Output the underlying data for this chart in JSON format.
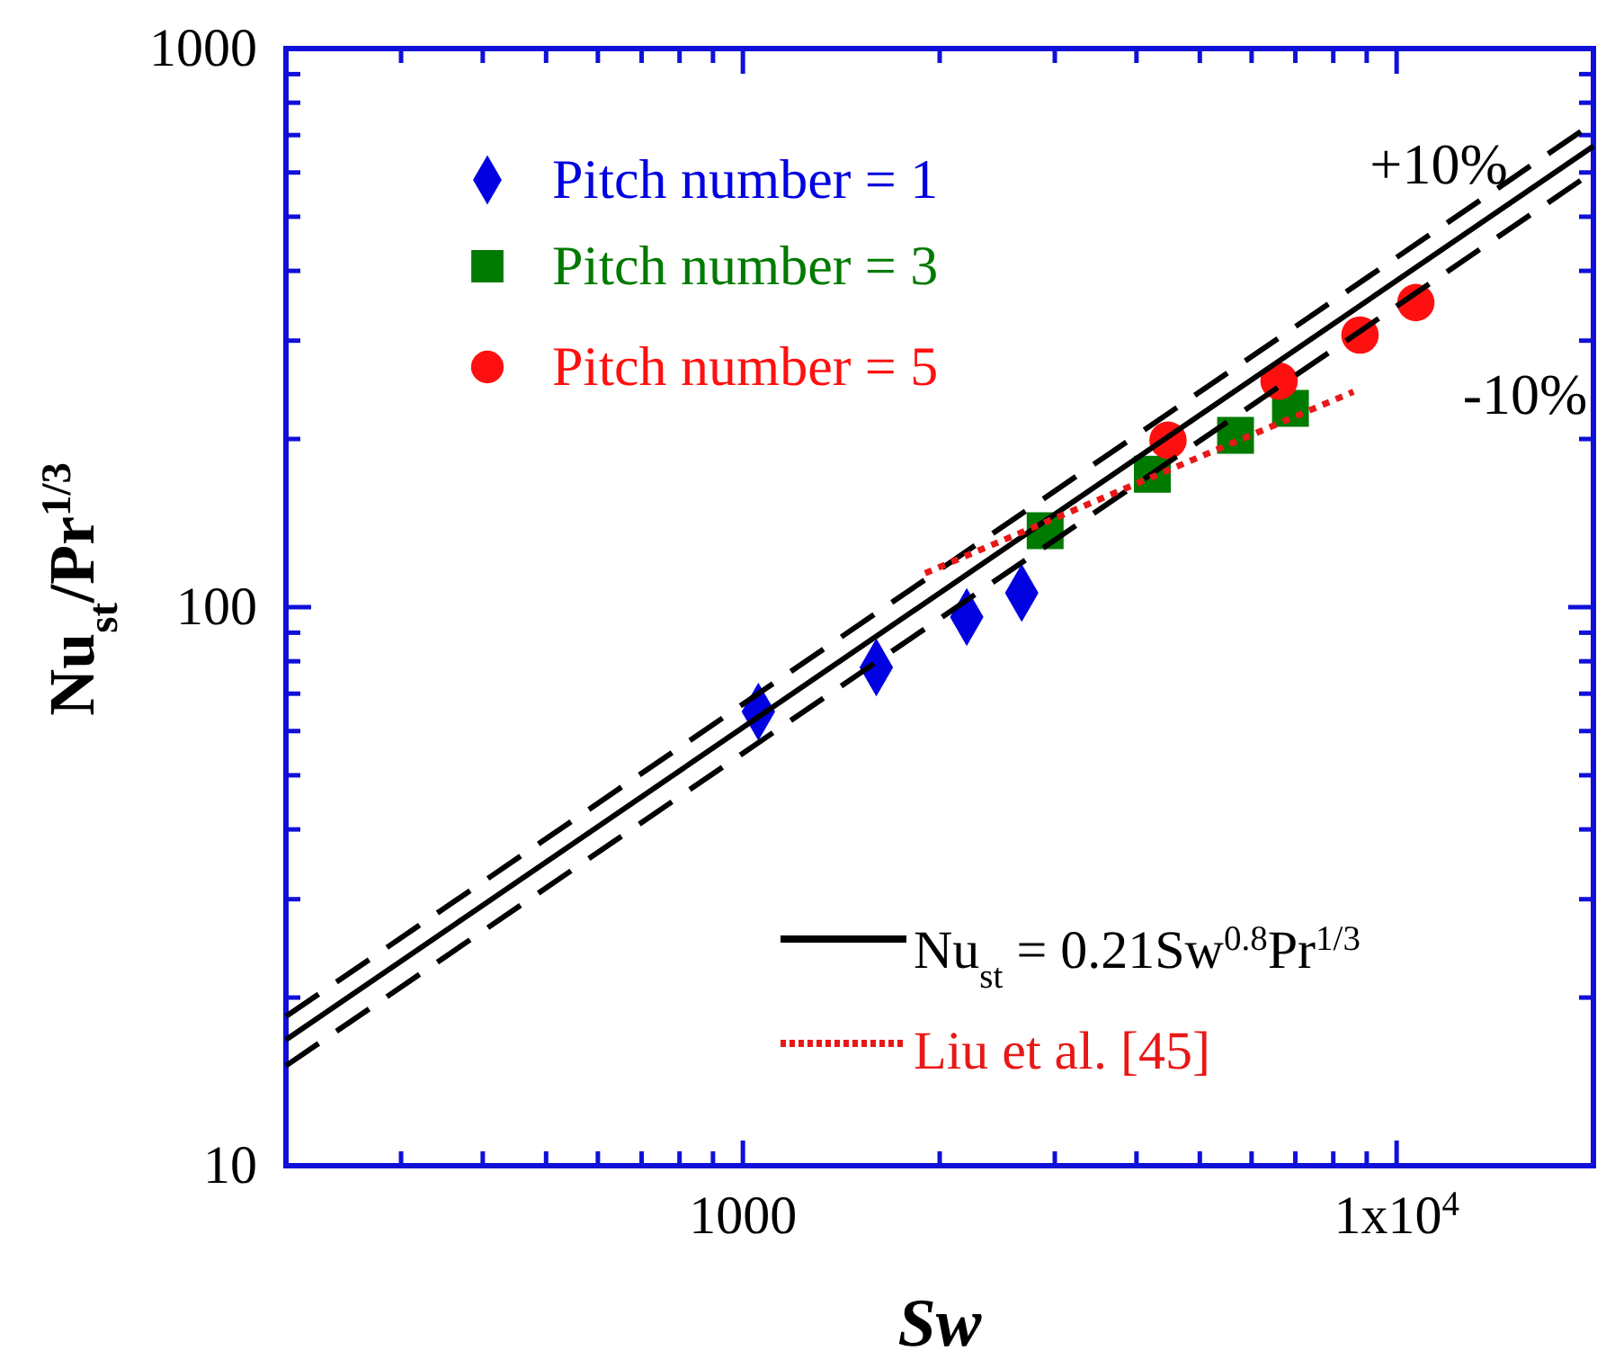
{
  "chart_data": {
    "type": "scatter",
    "xlabel": "Sw",
    "ylabel": "Nu$_{st}$/Pr$^{1/3}$",
    "log": "xy",
    "xlim": [
      200,
      20000
    ],
    "ylim": [
      10,
      1000
    ],
    "xticks": [
      {
        "value": 300,
        "label": null
      },
      {
        "value": 400,
        "label": null
      },
      {
        "value": 500,
        "label": null
      },
      {
        "value": 600,
        "label": null
      },
      {
        "value": 700,
        "label": null
      },
      {
        "value": 800,
        "label": null
      },
      {
        "value": 900,
        "label": null
      },
      1000,
      {
        "value": 2000,
        "label": null
      },
      {
        "value": 3000,
        "label": null
      },
      {
        "value": 4000,
        "label": null
      },
      {
        "value": 5000,
        "label": null
      },
      {
        "value": 6000,
        "label": null
      },
      {
        "value": 7000,
        "label": null
      },
      {
        "value": 8000,
        "label": null
      },
      {
        "value": 9000,
        "label": null
      },
      {
        "value": 10000,
        "label": "1x10$^{4}$"
      }
    ],
    "yticks": [
      10,
      {
        "value": 20,
        "label": null
      },
      {
        "value": 30,
        "label": null
      },
      {
        "value": 40,
        "label": null
      },
      {
        "value": 50,
        "label": null
      },
      {
        "value": 60,
        "label": null
      },
      {
        "value": 70,
        "label": null
      },
      {
        "value": 80,
        "label": null
      },
      {
        "value": 90,
        "label": null
      },
      100,
      {
        "value": 200,
        "label": null
      },
      {
        "value": 300,
        "label": null
      },
      {
        "value": 400,
        "label": null
      },
      {
        "value": 500,
        "label": null
      },
      {
        "value": 600,
        "label": null
      },
      {
        "value": 700,
        "label": null
      },
      {
        "value": 800,
        "label": null
      },
      {
        "value": 900,
        "label": null
      },
      1000
    ],
    "grid": false,
    "legend": "left",
    "series": [
      {
        "name": "Pitch number = 1",
        "marker": "diamond",
        "color": "#0000e0",
        "x": [
          1056,
          1600,
          2200,
          2670
        ],
        "values": [
          65,
          78,
          96,
          106
        ]
      },
      {
        "name": "Pitch number = 3",
        "marker": "square",
        "color": "#007a00",
        "x": [
          2900,
          4230,
          5670,
          6880
        ],
        "values": [
          137,
          173,
          203,
          227
        ]
      },
      {
        "name": "Pitch number = 5",
        "marker": "circle",
        "color": "#ff1010",
        "x": [
          4470,
          6610,
          8790,
          10700
        ],
        "values": [
          199,
          254,
          307,
          351
        ]
      },
      {
        "name": "Nu$_{st}$ = 0.21Sw$^{0.8}$Pr$^{1/3}$",
        "type": "line",
        "marker": "none",
        "line_style": "solid",
        "color": "#000000",
        "x": [
          200,
          20000
        ],
        "values": [
          16.8,
          669
        ]
      },
      {
        "type": "line",
        "marker": "none",
        "line_style": "dashed",
        "color": "#000000",
        "x": [
          200,
          20000
        ],
        "values": [
          18.5,
          736
        ]
      },
      {
        "type": "line",
        "marker": "none",
        "line_style": "dashed",
        "color": "#000000",
        "x": [
          200,
          20000
        ],
        "values": [
          15.1,
          602
        ]
      },
      {
        "name": "Liu et al. [45]",
        "type": "line",
        "marker": "none",
        "line_style": "dotted",
        "color": "#e81818",
        "x": [
          1900,
          8590
        ],
        "values": [
          115,
          243
        ]
      }
    ],
    "annotations": [
      "+10%",
      "-10%"
    ]
  }
}
